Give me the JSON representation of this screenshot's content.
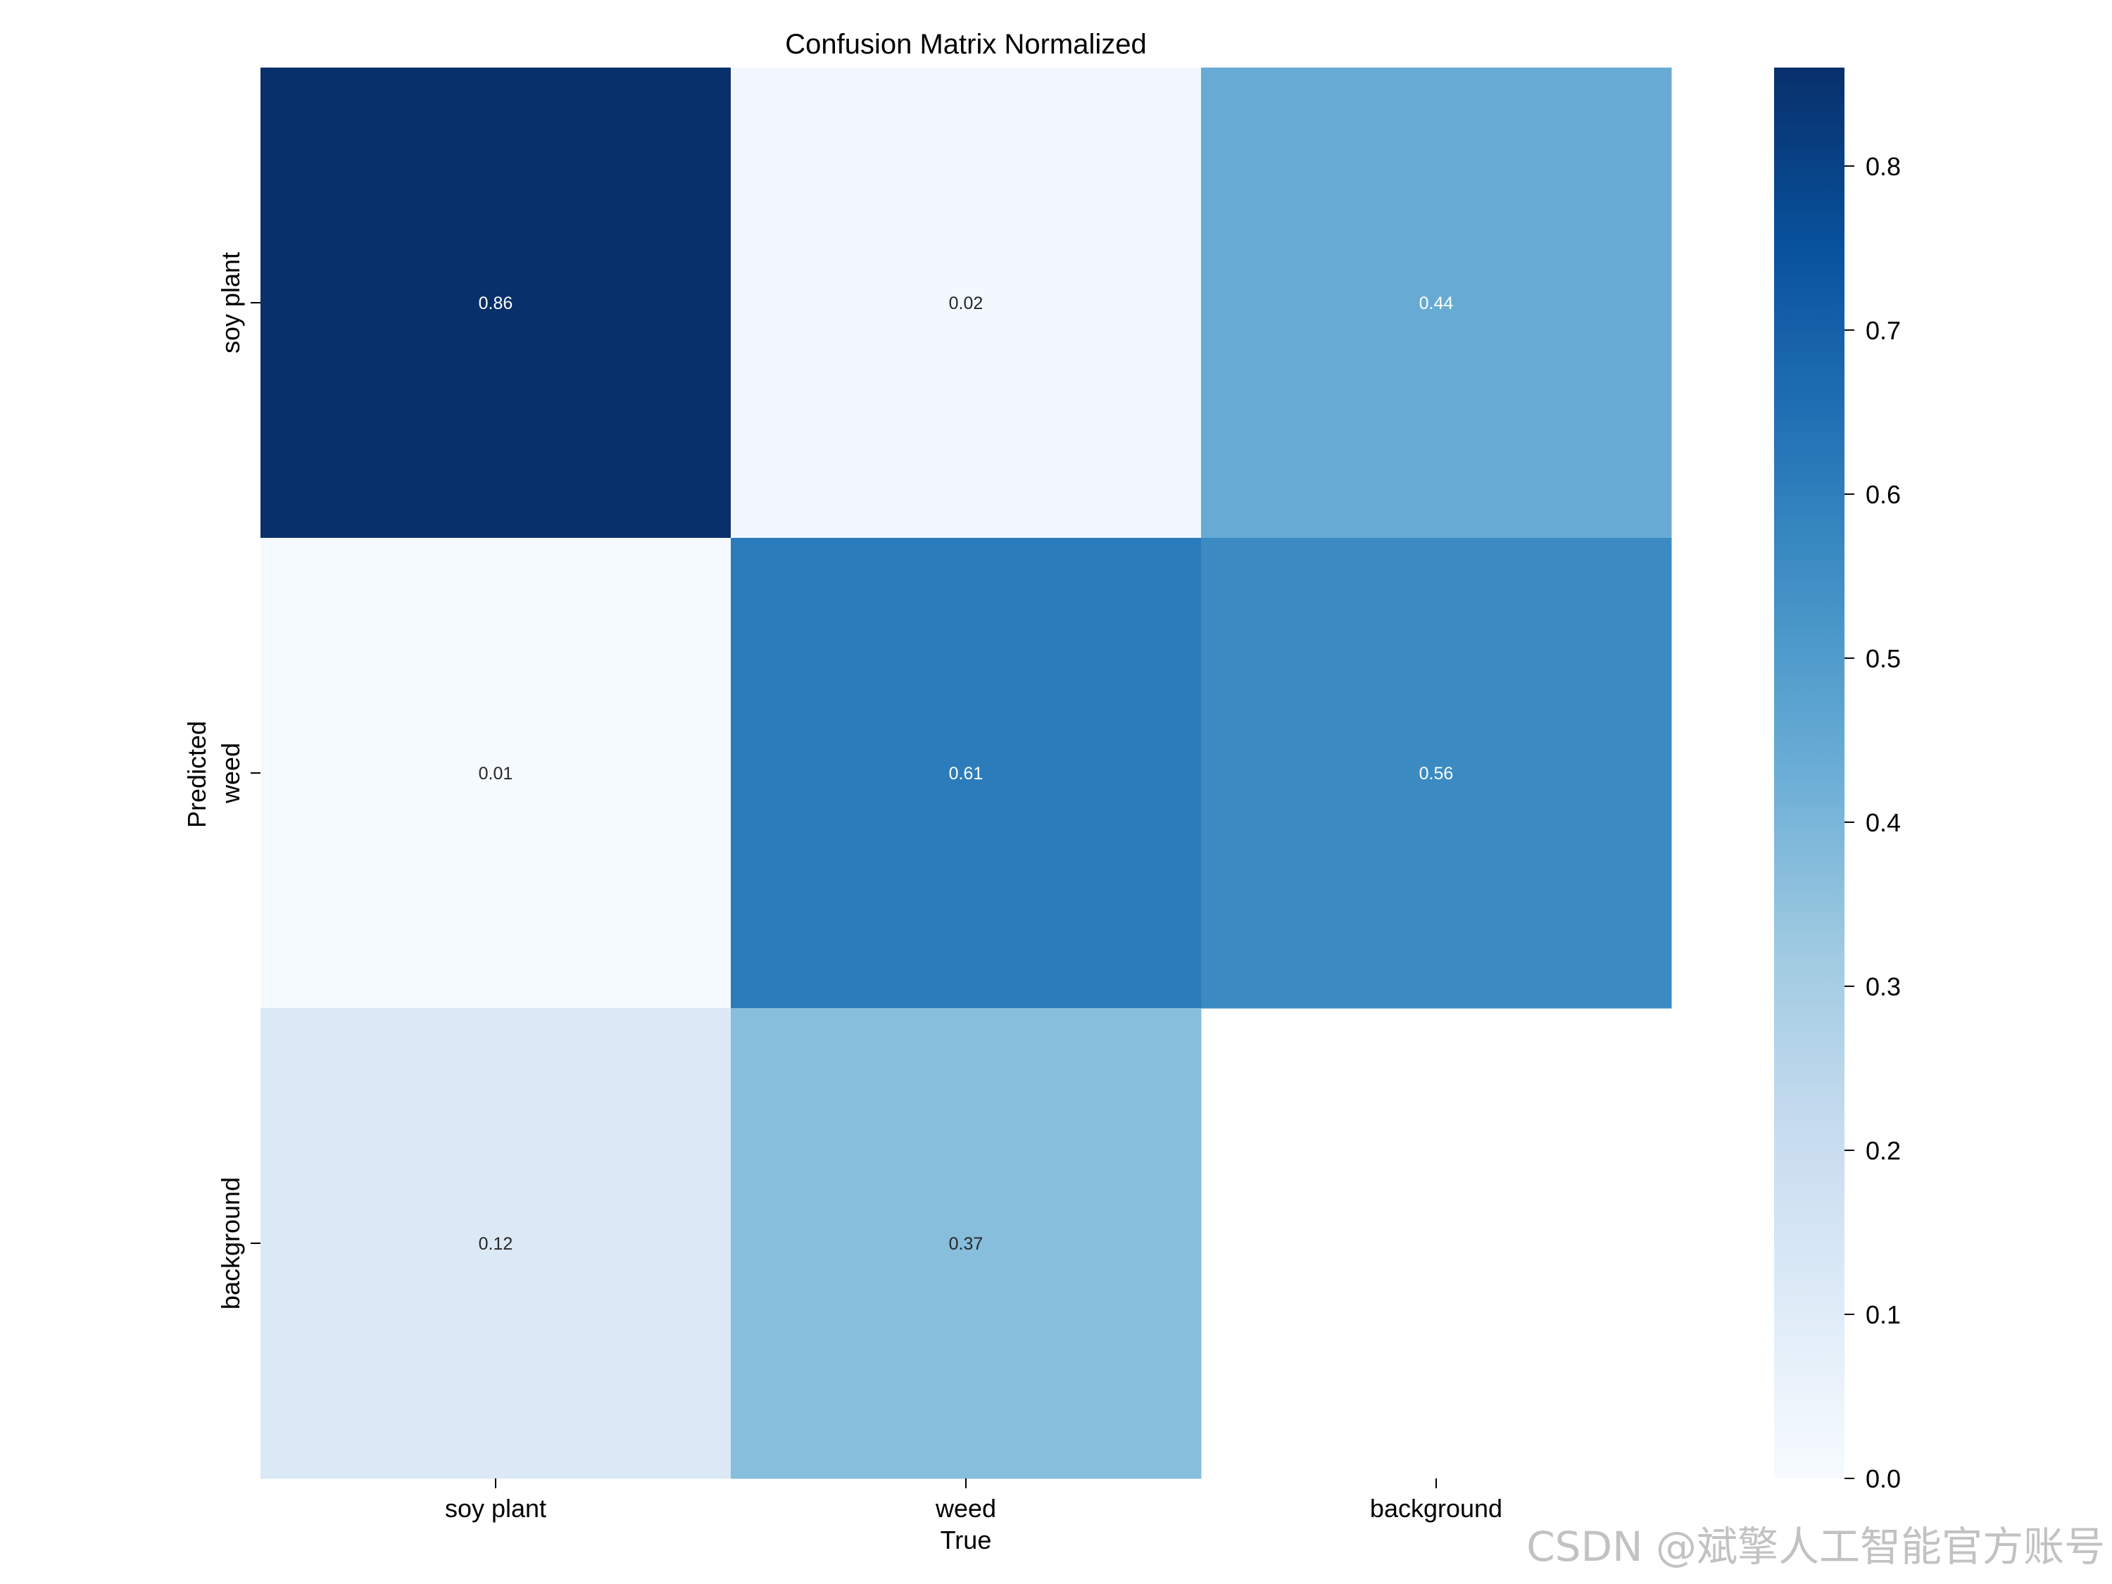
{
  "chart_data": {
    "type": "heatmap",
    "title": "Confusion Matrix Normalized",
    "xlabel": "True",
    "ylabel": "Predicted",
    "x_categories": [
      "soy plant",
      "weed",
      "background"
    ],
    "y_categories": [
      "soy plant",
      "weed",
      "background"
    ],
    "values": [
      [
        0.86,
        0.02,
        0.44
      ],
      [
        0.01,
        0.61,
        0.56
      ],
      [
        0.12,
        0.37,
        null
      ]
    ],
    "value_labels": [
      [
        "0.86",
        "0.02",
        "0.44"
      ],
      [
        "0.01",
        "0.61",
        "0.56"
      ],
      [
        "0.12",
        "0.37",
        ""
      ]
    ],
    "colorbar": {
      "range": [
        0,
        0.86
      ],
      "ticks": [
        0.0,
        0.1,
        0.2,
        0.3,
        0.4,
        0.5,
        0.6,
        0.7,
        0.8
      ],
      "tick_labels": [
        "0.0",
        "0.1",
        "0.2",
        "0.3",
        "0.4",
        "0.5",
        "0.6",
        "0.7",
        "0.8"
      ]
    },
    "colormap": "Blues",
    "colormap_stops": [
      "#f7fbff",
      "#deebf7",
      "#c6dbef",
      "#9ecae1",
      "#6baed6",
      "#4292c6",
      "#2171b5",
      "#08519c",
      "#08306b"
    ]
  },
  "watermark": "CSDN @斌擎人工智能官方账号"
}
